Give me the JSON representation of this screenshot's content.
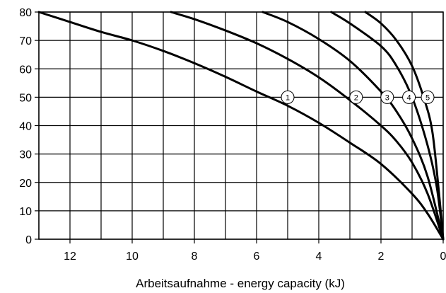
{
  "chart_data": {
    "type": "line",
    "title": "",
    "xlabel": "Arbeitsaufnahme - energy capacity (kJ)",
    "ylabel": "",
    "xlim": [
      13,
      0
    ],
    "ylim": [
      0,
      80
    ],
    "x_ticks": [
      12,
      10,
      8,
      6,
      4,
      2,
      0
    ],
    "y_ticks": [
      0,
      10,
      20,
      30,
      40,
      50,
      60,
      70,
      80
    ],
    "grid": true,
    "line_color": "#000000",
    "series": [
      {
        "label": "1",
        "label_at": [
          5.0,
          50
        ],
        "points": [
          [
            13.0,
            80
          ],
          [
            12.0,
            76.5
          ],
          [
            11.0,
            73
          ],
          [
            10.0,
            70
          ],
          [
            9.0,
            66.3
          ],
          [
            8.0,
            62
          ],
          [
            7.0,
            57.2
          ],
          [
            6.0,
            52
          ],
          [
            5.0,
            47
          ],
          [
            4.0,
            41
          ],
          [
            3.0,
            34
          ],
          [
            2.0,
            26.5
          ],
          [
            1.0,
            16
          ],
          [
            0.5,
            9
          ],
          [
            0,
            0
          ]
        ]
      },
      {
        "label": "2",
        "label_at": [
          2.8,
          50
        ],
        "points": [
          [
            8.75,
            80
          ],
          [
            8.0,
            77.5
          ],
          [
            7.0,
            73.5
          ],
          [
            6.0,
            69
          ],
          [
            5.0,
            63.5
          ],
          [
            4.0,
            57
          ],
          [
            3.0,
            49
          ],
          [
            2.0,
            40
          ],
          [
            1.5,
            34.5
          ],
          [
            1.0,
            27
          ],
          [
            0.5,
            16
          ],
          [
            0,
            0
          ]
        ]
      },
      {
        "label": "3",
        "label_at": [
          1.8,
          50
        ],
        "points": [
          [
            5.8,
            80
          ],
          [
            5.0,
            76.5
          ],
          [
            4.0,
            70.5
          ],
          [
            3.0,
            62.8
          ],
          [
            2.0,
            52
          ],
          [
            1.5,
            45
          ],
          [
            1.0,
            35.5
          ],
          [
            0.5,
            22
          ],
          [
            0,
            0
          ]
        ]
      },
      {
        "label": "4",
        "label_at": [
          1.1,
          50
        ],
        "points": [
          [
            3.6,
            80
          ],
          [
            3.0,
            76
          ],
          [
            2.0,
            68
          ],
          [
            1.5,
            61
          ],
          [
            1.0,
            50
          ],
          [
            0.5,
            33
          ],
          [
            0.2,
            18
          ],
          [
            0,
            0
          ]
        ]
      },
      {
        "label": "5",
        "label_at": [
          0.5,
          50
        ],
        "points": [
          [
            2.5,
            80
          ],
          [
            2.0,
            76
          ],
          [
            1.5,
            70
          ],
          [
            1.0,
            61
          ],
          [
            0.6,
            49
          ],
          [
            0.35,
            38
          ],
          [
            0.15,
            18
          ],
          [
            0,
            0
          ]
        ]
      }
    ]
  }
}
